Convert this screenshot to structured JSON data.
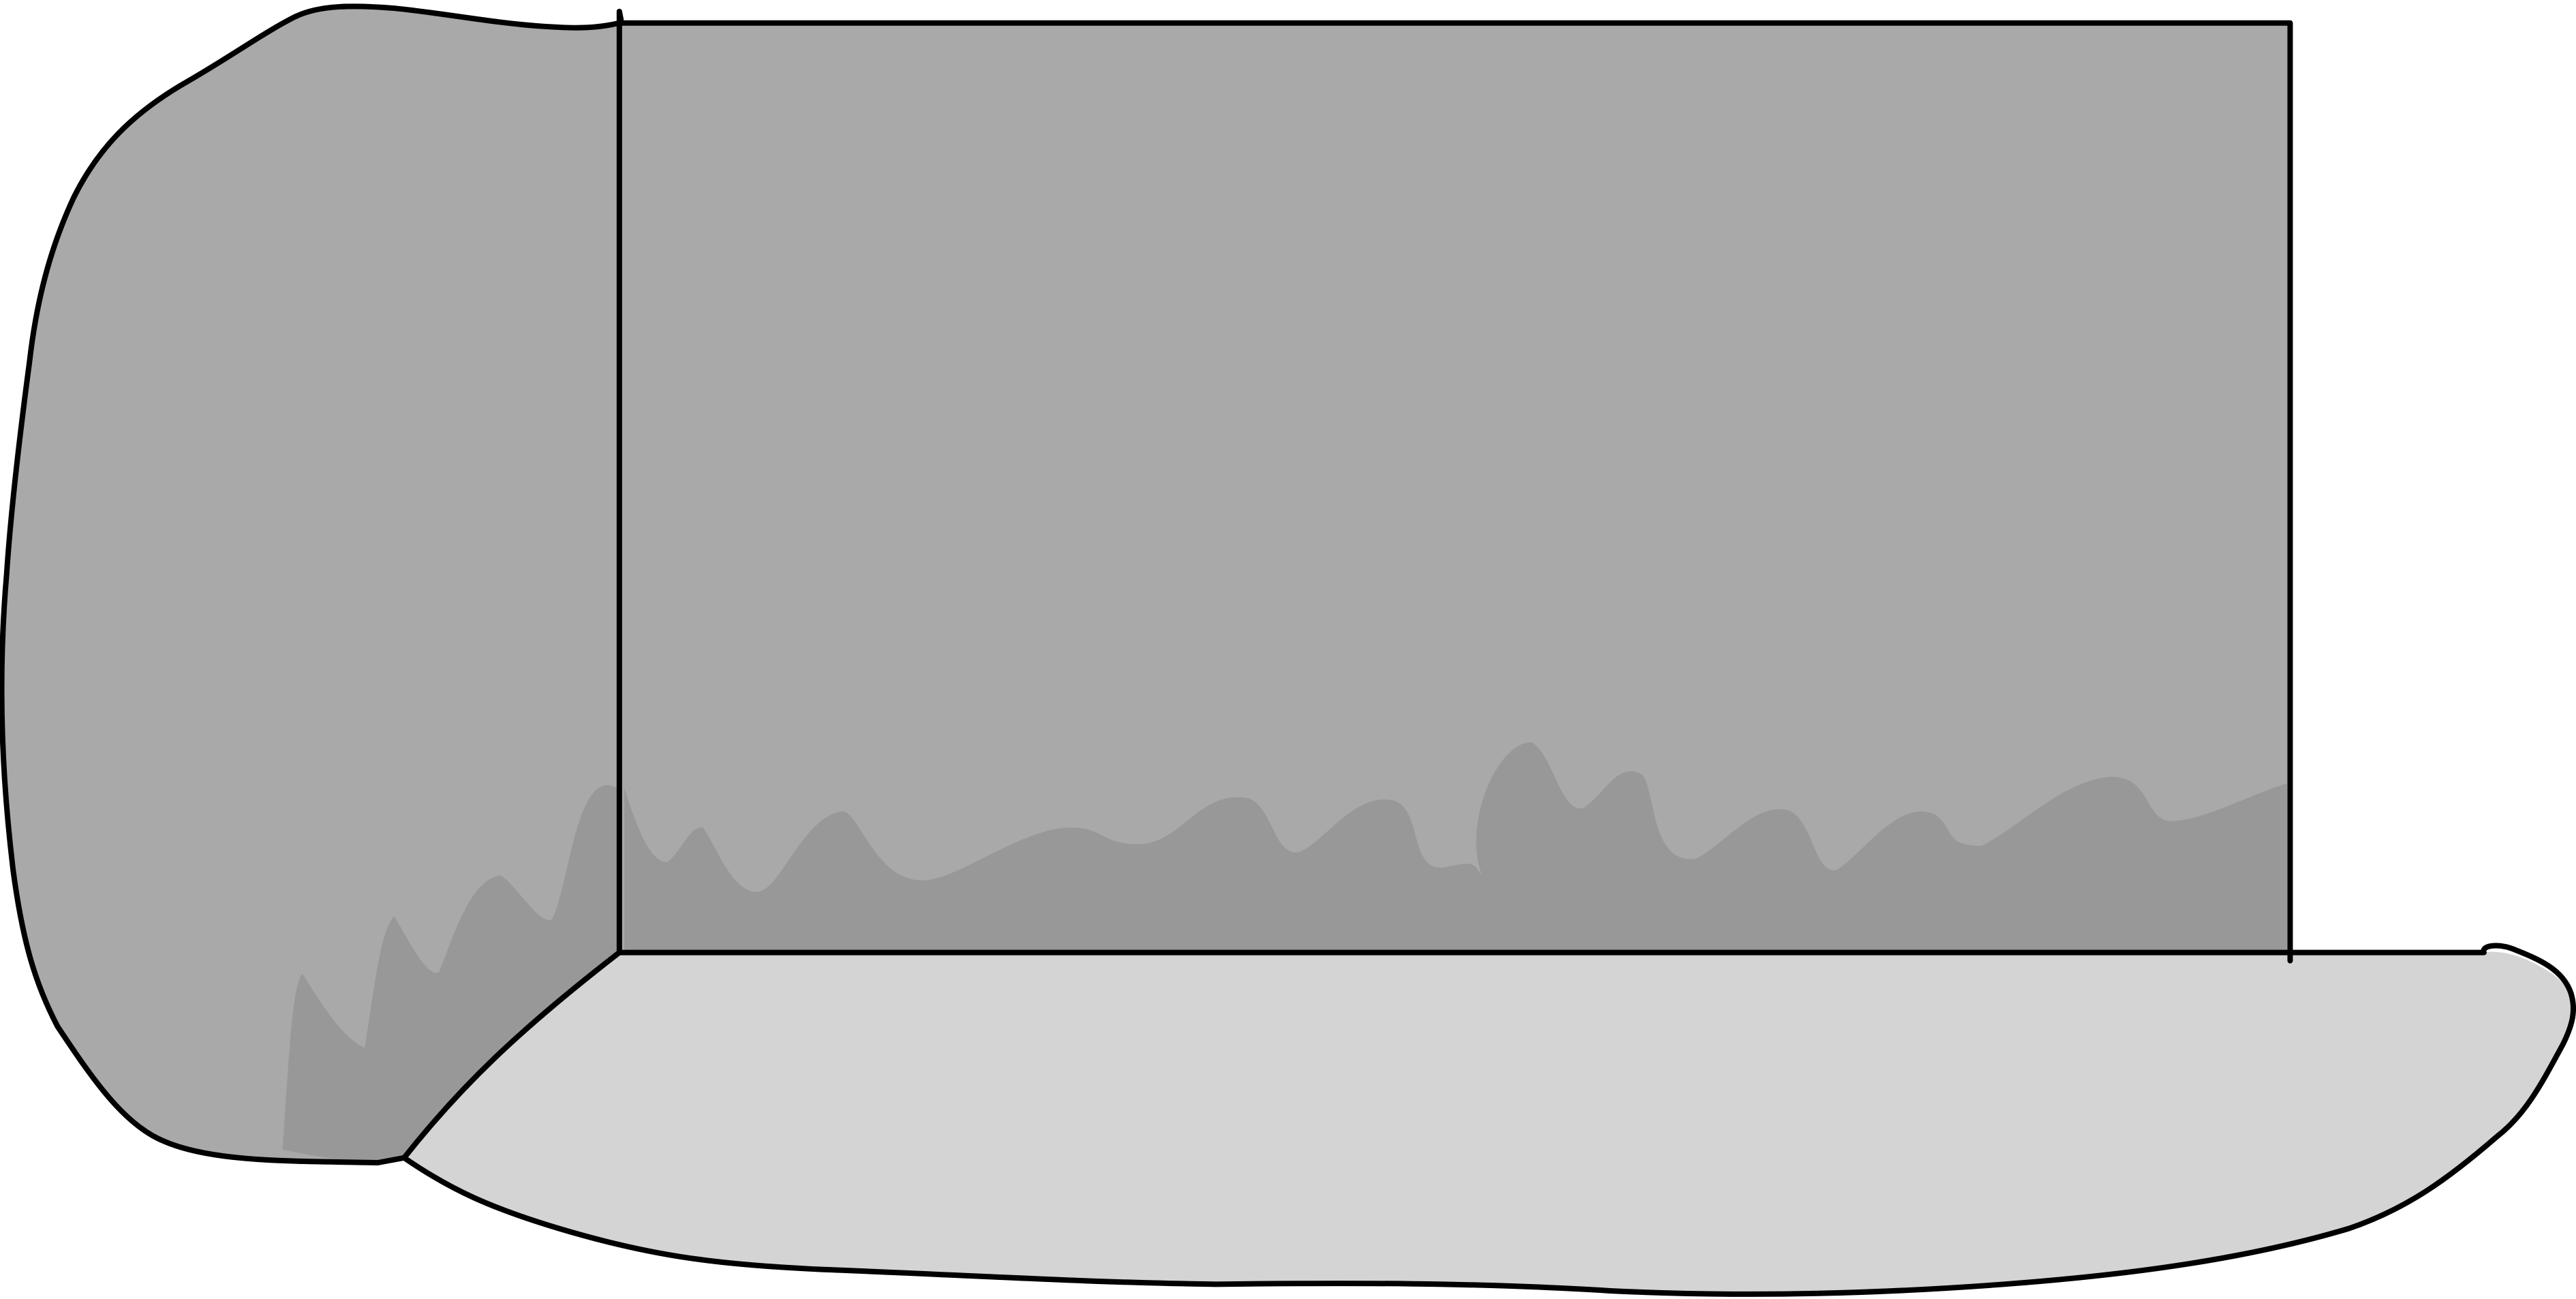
{
  "figure": {
    "colors": {
      "outline": "#000000",
      "back_panel": "#a9a9a9",
      "back_panel_shadow": "#989898",
      "side_panel": "#a9a9a9",
      "side_panel_shadow": "#989898",
      "floor_panel": "#d4d4d4",
      "background": "#ffffff"
    }
  }
}
